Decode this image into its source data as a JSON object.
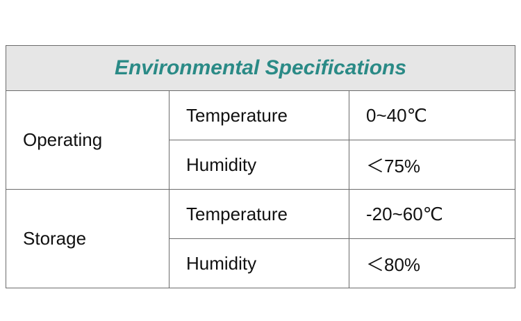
{
  "table": {
    "title": "Environmental Specifications",
    "groups": [
      {
        "name": "Operating",
        "rows": [
          [
            "Temperature",
            "0~40℃"
          ],
          [
            "Humidity",
            "＜75%"
          ]
        ]
      },
      {
        "name": "Storage",
        "rows": [
          [
            "Temperature",
            "-20~60℃"
          ],
          [
            "Humidity",
            "＜80%"
          ]
        ]
      }
    ]
  }
}
